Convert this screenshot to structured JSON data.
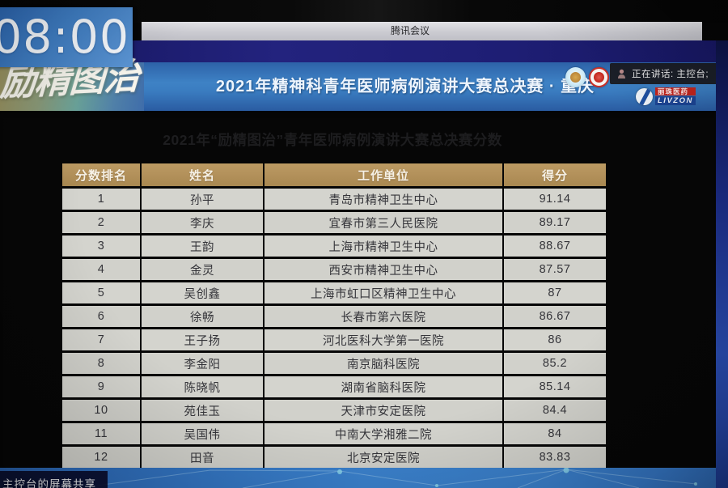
{
  "window": {
    "titlebar": "腾讯会议"
  },
  "clock": {
    "time": "08:00"
  },
  "banner": {
    "calligraphy": "励精图治",
    "title": "2021年精神科青年医师病例演讲大赛总决赛 · 重庆",
    "speaking_indicator": "正在讲话: 主控台;",
    "sponsor": {
      "name_cn": "丽珠医药",
      "name_en": "LIVZON"
    }
  },
  "slide": {
    "title": "2021年“励精图治”青年医师病例演讲大赛总决赛分数",
    "table": {
      "headers": [
        "分数排名",
        "姓名",
        "工作单位",
        "得分"
      ],
      "rows": [
        [
          "1",
          "孙平",
          "青岛市精神卫生中心",
          "91.14"
        ],
        [
          "2",
          "李庆",
          "宜春市第三人民医院",
          "89.17"
        ],
        [
          "3",
          "王韵",
          "上海市精神卫生中心",
          "88.67"
        ],
        [
          "4",
          "金灵",
          "西安市精神卫生中心",
          "87.57"
        ],
        [
          "5",
          "吴创鑫",
          "上海市虹口区精神卫生中心",
          "87"
        ],
        [
          "6",
          "徐畅",
          "长春市第六医院",
          "86.67"
        ],
        [
          "7",
          "王子扬",
          "河北医科大学第一医院",
          "86"
        ],
        [
          "8",
          "李金阳",
          "南京脑科医院",
          "85.2"
        ],
        [
          "9",
          "陈晓帆",
          "湖南省脑科医院",
          "85.14"
        ],
        [
          "10",
          "苑佳玉",
          "天津市安定医院",
          "84.4"
        ],
        [
          "11",
          "吴国伟",
          "中南大学湘雅二院",
          "84"
        ],
        [
          "12",
          "田音",
          "北京安定医院",
          "83.83"
        ]
      ]
    }
  },
  "footer": {
    "share_label": "主控台的屏幕共享"
  },
  "colors": {
    "table_header_gold": "#b2905a",
    "table_row_gray": "#d4d4ce",
    "banner_blue": "#3a7cc0",
    "navy": "#1d1d72",
    "bottom_blue": "#3b82ce"
  }
}
